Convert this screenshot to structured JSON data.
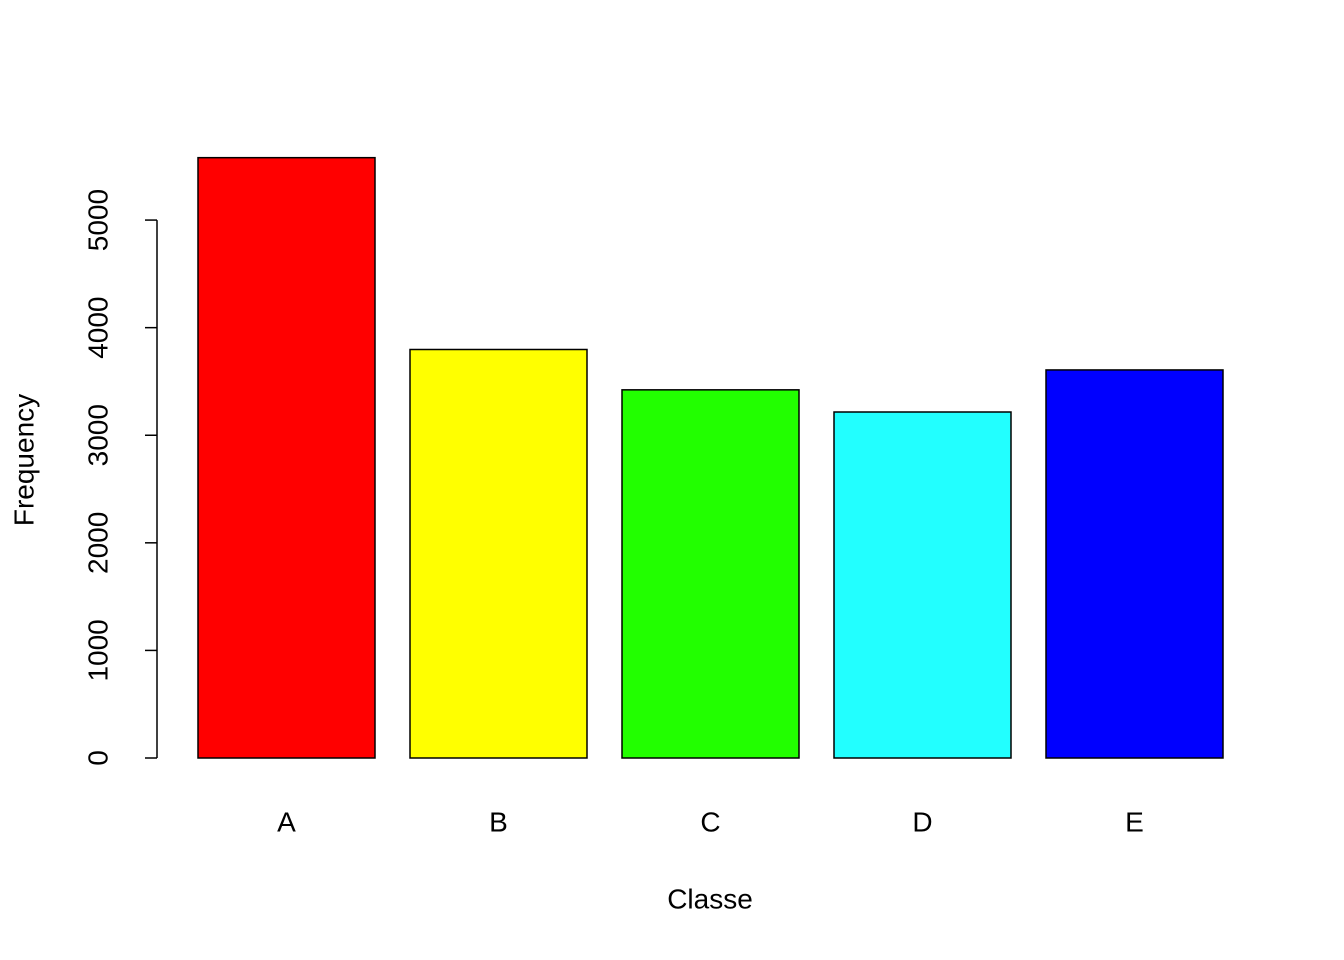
{
  "chart_data": {
    "type": "bar",
    "x_label": "Classe",
    "y_label": "Frequency",
    "categories": [
      "A",
      "B",
      "C",
      "D",
      "E"
    ],
    "values": [
      5580,
      3797,
      3422,
      3216,
      3607
    ],
    "colors": [
      "#ff0000",
      "#ffff00",
      "#22ff00",
      "#22ffff",
      "#0000ff"
    ],
    "ylim": [
      0,
      5800
    ],
    "yticks": [
      0,
      1000,
      2000,
      3000,
      4000,
      5000
    ]
  }
}
